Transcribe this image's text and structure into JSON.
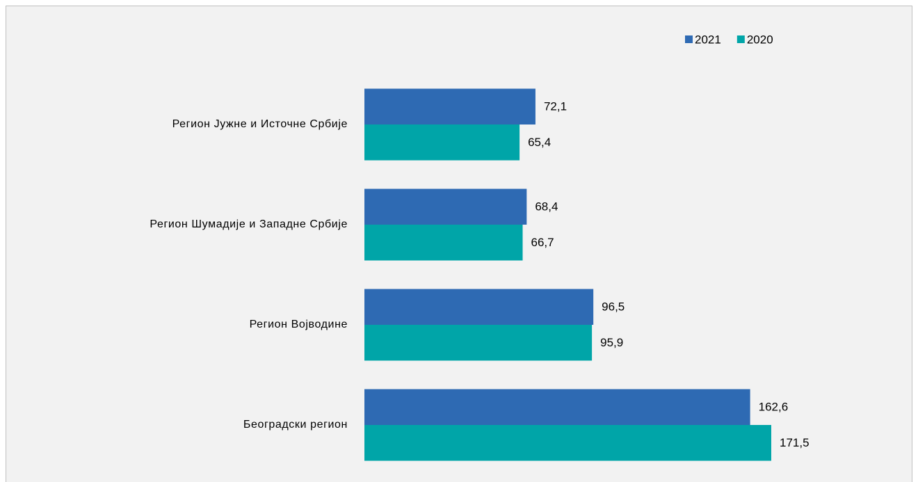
{
  "chart_data": {
    "type": "bar",
    "orientation": "horizontal",
    "categories": [
      "Регион Јужне и Источне Србије",
      "Регион Шумадије и Западне Србије",
      "Регион Војводине",
      "Београдски регион"
    ],
    "series": [
      {
        "name": "2021",
        "color": "#2e6ab3",
        "values": [
          72.1,
          68.4,
          96.5,
          162.6
        ],
        "value_labels": [
          "72,1",
          "68,4",
          "96,5",
          "162,6"
        ]
      },
      {
        "name": "2020",
        "color": "#00a5a8",
        "values": [
          65.4,
          66.7,
          95.9,
          171.5
        ],
        "value_labels": [
          "65,4",
          "66,7",
          "95,9",
          "171,5"
        ]
      }
    ],
    "legend": "top-right"
  }
}
